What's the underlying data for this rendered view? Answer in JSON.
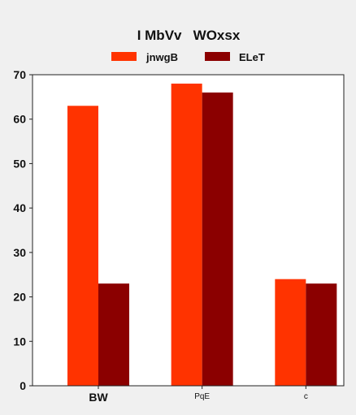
{
  "chart_data": {
    "type": "bar",
    "title": "I MbVv   WOxsx",
    "categories": [
      "BW",
      "PqE",
      "c"
    ],
    "series": [
      {
        "name": "jnwgB",
        "color": "#ff3300",
        "values": [
          63,
          68,
          24
        ]
      },
      {
        "name": "ELeT",
        "color": "#8b0000",
        "values": [
          23,
          66,
          23
        ]
      }
    ],
    "ylim": [
      0,
      70
    ],
    "yticks": [
      0,
      10,
      20,
      30,
      40,
      50,
      60,
      70
    ],
    "xlabel": "",
    "ylabel": "",
    "grid": false,
    "legend_position": "top"
  }
}
